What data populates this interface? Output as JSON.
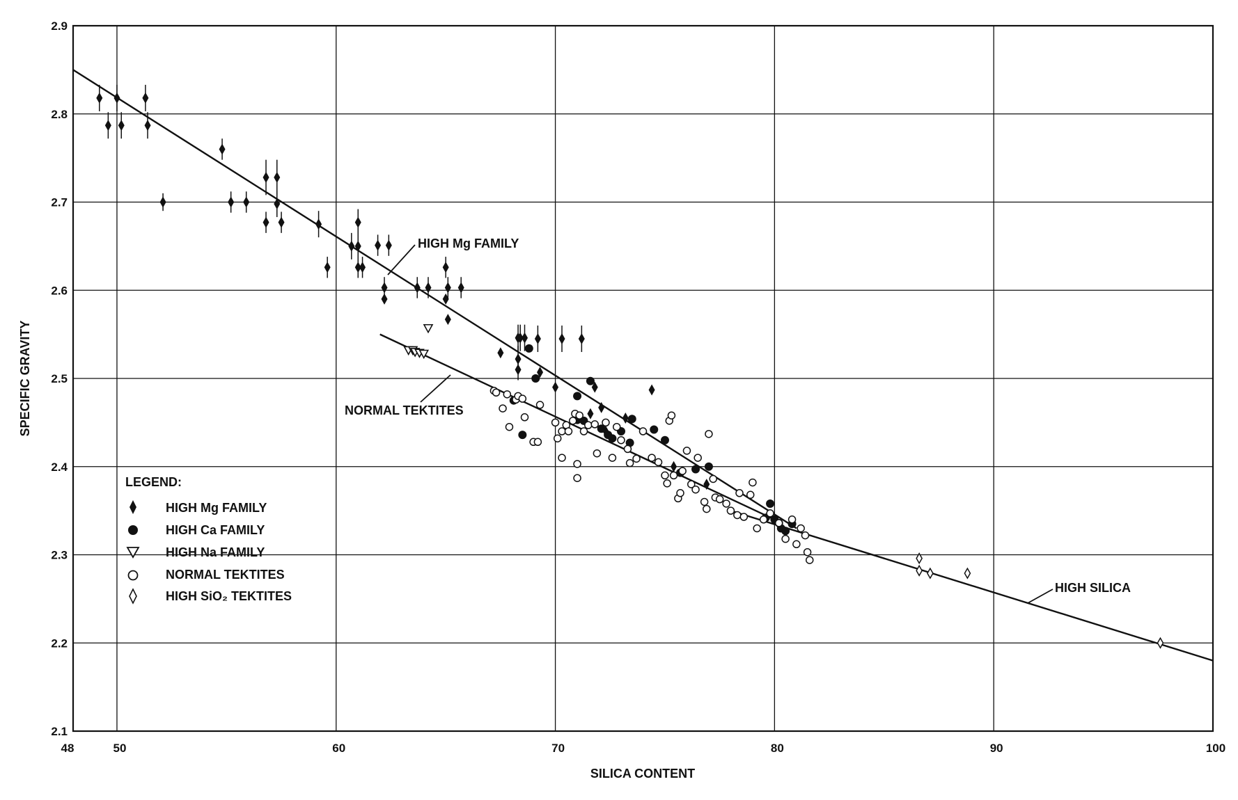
{
  "chart_data": {
    "type": "scatter",
    "xlabel": "SILICA CONTENT",
    "ylabel": "SPECIFIC GRAVITY",
    "xlim": [
      48,
      100
    ],
    "ylim": [
      2.1,
      2.9
    ],
    "x_ticks": [
      "48",
      "50",
      "60",
      "70",
      "80",
      "90",
      "100"
    ],
    "y_ticks": [
      "2.1",
      "2.2",
      "2.3",
      "2.4",
      "2.5",
      "2.6",
      "2.7",
      "2.8",
      "2.9"
    ],
    "grid": true,
    "legend": {
      "title": "LEGEND:",
      "placement": "lower-left",
      "entries": [
        {
          "marker": "filled-diamond",
          "label": "HIGH Mg FAMILY"
        },
        {
          "marker": "filled-circle",
          "label": "HIGH Ca FAMILY"
        },
        {
          "marker": "open-triangle-down",
          "label": "HIGH Na FAMILY"
        },
        {
          "marker": "open-circle",
          "label": "NORMAL TEKTITES"
        },
        {
          "marker": "open-diamond",
          "label": "HIGH SiO₂ TEKTITES"
        }
      ]
    },
    "annotations": [
      {
        "text": "HIGH Mg FAMILY",
        "x": 64.0,
        "y": 2.655
      },
      {
        "text": "NORMAL TEKTITES",
        "x": 48.0,
        "y": 2.465
      },
      {
        "text": "HIGH SILICA",
        "x": 91.5,
        "y": 2.265
      }
    ],
    "fit_lines": [
      {
        "label": "HIGH Mg FAMILY",
        "points": [
          [
            48,
            2.85
          ],
          [
            81,
            2.33
          ]
        ]
      },
      {
        "label": "NORMAL TEKTITES",
        "points": [
          [
            62,
            2.55
          ],
          [
            80,
            2.34
          ]
        ]
      },
      {
        "label": "HIGH SILICA",
        "points": [
          [
            78,
            2.35
          ],
          [
            100,
            2.18
          ]
        ]
      }
    ],
    "series": [
      {
        "name": "HIGH Mg FAMILY",
        "marker": "filled-diamond",
        "points": [
          [
            49.2,
            2.818,
            0.015
          ],
          [
            49.6,
            2.787,
            0.015
          ],
          [
            50.0,
            2.818,
            0.015
          ],
          [
            50.2,
            2.787,
            0.015
          ],
          [
            51.3,
            2.818,
            0.015
          ],
          [
            51.4,
            2.787,
            0.015
          ],
          [
            52.1,
            2.7,
            0.01
          ],
          [
            54.8,
            2.76,
            0.012
          ],
          [
            55.2,
            2.7,
            0.012
          ],
          [
            55.9,
            2.7,
            0.012
          ],
          [
            56.8,
            2.728,
            0.02
          ],
          [
            56.8,
            2.677,
            0.012
          ],
          [
            57.3,
            2.728,
            0.02
          ],
          [
            57.3,
            2.698,
            0.015
          ],
          [
            57.5,
            2.677,
            0.012
          ],
          [
            59.2,
            2.675,
            0.015
          ],
          [
            59.6,
            2.626,
            0.012
          ],
          [
            60.7,
            2.65,
            0.015
          ],
          [
            61.0,
            2.677,
            0.015
          ],
          [
            61.0,
            2.65,
            0.015
          ],
          [
            61.0,
            2.626,
            0.012
          ],
          [
            61.2,
            2.626,
            0.012
          ],
          [
            61.9,
            2.651,
            0.012
          ],
          [
            62.4,
            2.651,
            0.012
          ],
          [
            62.2,
            2.603,
            0.012
          ],
          [
            62.2,
            2.59,
            0
          ],
          [
            63.7,
            2.603,
            0.012
          ],
          [
            64.2,
            2.603,
            0.012
          ],
          [
            65.0,
            2.626,
            0.012
          ],
          [
            65.0,
            2.59,
            0
          ],
          [
            65.1,
            2.603,
            0.012
          ],
          [
            65.1,
            2.567,
            0
          ],
          [
            65.7,
            2.603,
            0.012
          ],
          [
            67.5,
            2.529,
            0
          ],
          [
            68.3,
            2.546,
            0.015
          ],
          [
            68.4,
            2.546,
            0.015
          ],
          [
            68.6,
            2.546,
            0.015
          ],
          [
            69.2,
            2.545,
            0.015
          ],
          [
            68.3,
            2.522,
            0.015
          ],
          [
            68.3,
            2.51,
            0.012
          ],
          [
            70.3,
            2.545,
            0.015
          ],
          [
            71.2,
            2.545,
            0.015
          ],
          [
            69.3,
            2.507,
            0
          ],
          [
            70.0,
            2.49,
            0
          ],
          [
            71.6,
            2.46,
            0
          ],
          [
            71.8,
            2.49,
            0
          ],
          [
            72.1,
            2.467,
            0
          ],
          [
            72.3,
            2.44,
            0
          ],
          [
            73.2,
            2.455,
            0
          ],
          [
            74.4,
            2.487,
            0
          ],
          [
            75.4,
            2.4,
            0
          ],
          [
            76.9,
            2.38,
            0
          ]
        ]
      },
      {
        "name": "HIGH Ca FAMILY",
        "marker": "filled-circle",
        "points": [
          [
            68.1,
            2.475
          ],
          [
            68.5,
            2.436
          ],
          [
            68.8,
            2.534
          ],
          [
            69.1,
            2.5
          ],
          [
            71.0,
            2.48
          ],
          [
            71.0,
            2.453
          ],
          [
            71.3,
            2.452
          ],
          [
            71.6,
            2.497
          ],
          [
            72.1,
            2.443
          ],
          [
            72.4,
            2.436
          ],
          [
            72.6,
            2.432
          ],
          [
            73.0,
            2.44
          ],
          [
            73.4,
            2.427
          ],
          [
            73.5,
            2.454
          ],
          [
            74.5,
            2.442
          ],
          [
            75.0,
            2.43
          ],
          [
            75.7,
            2.393
          ],
          [
            76.4,
            2.397
          ],
          [
            77.0,
            2.4
          ],
          [
            79.8,
            2.358
          ],
          [
            80.0,
            2.34
          ],
          [
            80.3,
            2.33
          ],
          [
            80.5,
            2.327
          ],
          [
            80.8,
            2.335
          ],
          [
            80.2,
            2.336
          ],
          [
            79.6,
            2.342
          ]
        ]
      },
      {
        "name": "HIGH Na FAMILY",
        "marker": "open-triangle-down",
        "points": [
          [
            63.3,
            2.532
          ],
          [
            63.5,
            2.532
          ],
          [
            63.6,
            2.53
          ],
          [
            63.8,
            2.529
          ],
          [
            64.0,
            2.528
          ],
          [
            64.2,
            2.557
          ]
        ]
      },
      {
        "name": "NORMAL TEKTITES",
        "marker": "open-circle",
        "points": [
          [
            67.2,
            2.486
          ],
          [
            67.3,
            2.484
          ],
          [
            67.6,
            2.466
          ],
          [
            67.8,
            2.482
          ],
          [
            67.9,
            2.445
          ],
          [
            68.2,
            2.476
          ],
          [
            68.3,
            2.48
          ],
          [
            68.5,
            2.477
          ],
          [
            68.6,
            2.456
          ],
          [
            69.0,
            2.428
          ],
          [
            69.2,
            2.428
          ],
          [
            69.3,
            2.47
          ],
          [
            70.0,
            2.45
          ],
          [
            70.1,
            2.432
          ],
          [
            70.3,
            2.41
          ],
          [
            70.3,
            2.44
          ],
          [
            70.5,
            2.447
          ],
          [
            70.6,
            2.44
          ],
          [
            70.8,
            2.452
          ],
          [
            70.9,
            2.46
          ],
          [
            71.0,
            2.403
          ],
          [
            71.0,
            2.387
          ],
          [
            71.1,
            2.458
          ],
          [
            71.3,
            2.44
          ],
          [
            71.5,
            2.447
          ],
          [
            71.8,
            2.448
          ],
          [
            71.9,
            2.415
          ],
          [
            72.3,
            2.45
          ],
          [
            72.6,
            2.41
          ],
          [
            72.8,
            2.445
          ],
          [
            73.0,
            2.43
          ],
          [
            73.3,
            2.42
          ],
          [
            73.4,
            2.404
          ],
          [
            73.7,
            2.409
          ],
          [
            74.0,
            2.44
          ],
          [
            74.4,
            2.41
          ],
          [
            74.7,
            2.405
          ],
          [
            75.0,
            2.39
          ],
          [
            75.1,
            2.381
          ],
          [
            75.2,
            2.452
          ],
          [
            75.3,
            2.458
          ],
          [
            75.4,
            2.39
          ],
          [
            75.6,
            2.364
          ],
          [
            75.7,
            2.37
          ],
          [
            75.8,
            2.395
          ],
          [
            76.0,
            2.418
          ],
          [
            76.2,
            2.38
          ],
          [
            76.4,
            2.374
          ],
          [
            76.5,
            2.41
          ],
          [
            76.8,
            2.36
          ],
          [
            76.9,
            2.352
          ],
          [
            77.0,
            2.437
          ],
          [
            77.2,
            2.386
          ],
          [
            77.3,
            2.365
          ],
          [
            77.5,
            2.363
          ],
          [
            77.8,
            2.358
          ],
          [
            78.0,
            2.35
          ],
          [
            78.3,
            2.345
          ],
          [
            78.4,
            2.37
          ],
          [
            78.6,
            2.343
          ],
          [
            78.9,
            2.368
          ],
          [
            79.0,
            2.382
          ],
          [
            79.2,
            2.33
          ],
          [
            79.5,
            2.34
          ],
          [
            79.8,
            2.347
          ],
          [
            80.2,
            2.336
          ],
          [
            80.5,
            2.318
          ],
          [
            80.8,
            2.34
          ],
          [
            81.0,
            2.312
          ],
          [
            81.2,
            2.33
          ],
          [
            81.4,
            2.322
          ],
          [
            81.5,
            2.303
          ],
          [
            81.6,
            2.294
          ]
        ]
      },
      {
        "name": "HIGH SiO₂ TEKTITES",
        "marker": "open-diamond",
        "points": [
          [
            86.6,
            2.296
          ],
          [
            86.6,
            2.282
          ],
          [
            87.1,
            2.279
          ],
          [
            88.8,
            2.279
          ],
          [
            97.6,
            2.2
          ]
        ]
      }
    ]
  }
}
